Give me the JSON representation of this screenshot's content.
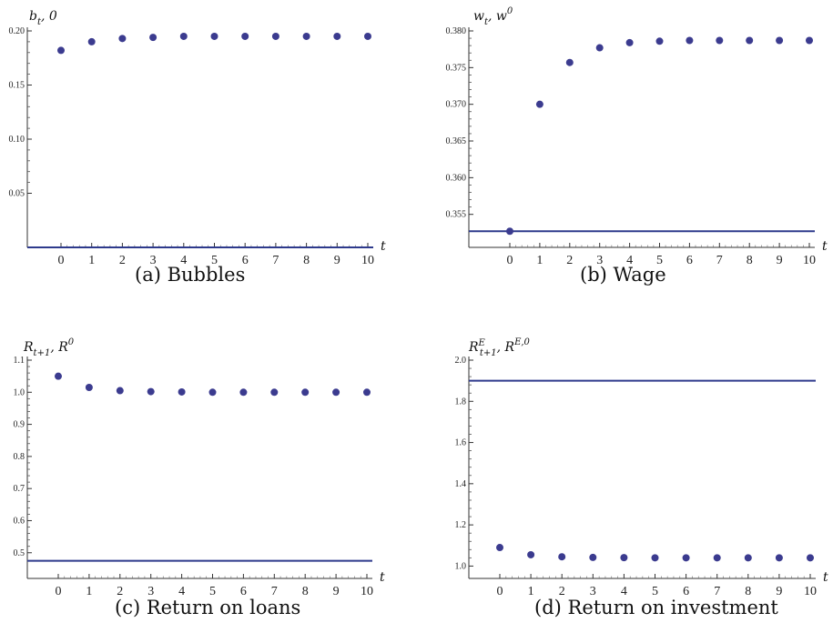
{
  "chart_data": [
    {
      "type": "scatter",
      "panel": "(a)",
      "caption": "(a)  Bubbles",
      "ylabel_main": "b",
      "ylabel_sub": "t",
      "ylabel_sup": "",
      "ylabel_rest": ", 0",
      "xlabel": "t",
      "x": [
        0,
        1,
        2,
        3,
        4,
        5,
        6,
        7,
        8,
        9,
        10
      ],
      "y": [
        0.182,
        0.19,
        0.193,
        0.194,
        0.195,
        0.195,
        0.195,
        0.195,
        0.195,
        0.195,
        0.195
      ],
      "hline": 0.0,
      "ylim": [
        0.0,
        0.2
      ],
      "yticks": [
        0.05,
        0.1,
        0.15,
        0.2
      ],
      "ytick_labels": [
        "0.05",
        "0.10",
        "0.15",
        "0.20"
      ],
      "xticks": [
        0,
        1,
        2,
        3,
        4,
        5,
        6,
        7,
        8,
        9,
        10
      ],
      "point_color": "#3b3b8f",
      "line_color": "#2e3a8c"
    },
    {
      "type": "scatter",
      "panel": "(b)",
      "caption": "(b)  Wage",
      "ylabel_main": "w",
      "ylabel_sub": "t",
      "ylabel_sup": "",
      "ylabel_rest": ", w",
      "ylabel_rest_sup": "0",
      "xlabel": "t",
      "x": [
        0,
        1,
        2,
        3,
        4,
        5,
        6,
        7,
        8,
        9,
        10
      ],
      "y": [
        0.3527,
        0.37,
        0.3757,
        0.3777,
        0.3784,
        0.3786,
        0.3787,
        0.3787,
        0.3787,
        0.3787,
        0.3787
      ],
      "hline": 0.3527,
      "ylim": [
        0.3505,
        0.38
      ],
      "yticks": [
        0.355,
        0.36,
        0.365,
        0.37,
        0.375,
        0.38
      ],
      "ytick_labels": [
        "0.355",
        "0.360",
        "0.365",
        "0.370",
        "0.375",
        "0.380"
      ],
      "xticks": [
        0,
        1,
        2,
        3,
        4,
        5,
        6,
        7,
        8,
        9,
        10
      ],
      "point_color": "#3b3b8f",
      "line_color": "#2e3a8c"
    },
    {
      "type": "scatter",
      "panel": "(c)",
      "caption": "(c)  Return on loans",
      "ylabel_main": "R",
      "ylabel_sub": "t+1",
      "ylabel_sup": "",
      "ylabel_rest": ", R",
      "ylabel_rest_sup": "0",
      "xlabel": "t",
      "x": [
        0,
        1,
        2,
        3,
        4,
        5,
        6,
        7,
        8,
        9,
        10
      ],
      "y": [
        1.05,
        1.015,
        1.005,
        1.002,
        1.001,
        1.0,
        1.0,
        1.0,
        1.0,
        1.0,
        1.0
      ],
      "hline": 0.475,
      "ylim": [
        0.42,
        1.1
      ],
      "yticks": [
        0.5,
        0.6,
        0.7,
        0.8,
        0.9,
        1.0,
        1.1
      ],
      "ytick_labels": [
        "0.5",
        "0.6",
        "0.7",
        "0.8",
        "0.9",
        "1.0",
        "1.1"
      ],
      "xticks": [
        0,
        1,
        2,
        3,
        4,
        5,
        6,
        7,
        8,
        9,
        10
      ],
      "point_color": "#3b3b8f",
      "line_color": "#2e3a8c"
    },
    {
      "type": "scatter",
      "panel": "(d)",
      "caption": "(d)  Return on investment",
      "ylabel_main": "R",
      "ylabel_sub": "t+1",
      "ylabel_sup": "E",
      "ylabel_rest": ", R",
      "ylabel_rest_sup": "E,0",
      "xlabel": "t",
      "x": [
        0,
        1,
        2,
        3,
        4,
        5,
        6,
        7,
        8,
        9,
        10
      ],
      "y": [
        1.09,
        1.055,
        1.045,
        1.042,
        1.041,
        1.04,
        1.04,
        1.04,
        1.04,
        1.04,
        1.04
      ],
      "hline": 1.9,
      "ylim": [
        0.94,
        2.0
      ],
      "yticks": [
        1.0,
        1.2,
        1.4,
        1.6,
        1.8,
        2.0
      ],
      "ytick_labels": [
        "1.0",
        "1.2",
        "1.4",
        "1.6",
        "1.8",
        "2.0"
      ],
      "xticks": [
        0,
        1,
        2,
        3,
        4,
        5,
        6,
        7,
        8,
        9,
        10
      ],
      "point_color": "#3b3b8f",
      "line_color": "#2e3a8c"
    }
  ]
}
